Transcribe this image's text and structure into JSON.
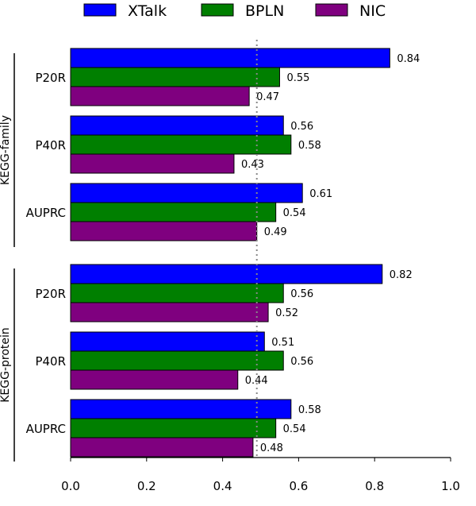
{
  "chart_data": {
    "type": "bar",
    "orientation": "horizontal",
    "series": [
      {
        "name": "XTalk",
        "color": "#0000ff"
      },
      {
        "name": "BPLN",
        "color": "#007f00"
      },
      {
        "name": "NIC",
        "color": "#7f007f"
      }
    ],
    "groups": [
      {
        "name": "KEGG-family",
        "categories": [
          {
            "label": "P20R",
            "values": [
              0.84,
              0.55,
              0.47
            ]
          },
          {
            "label": "P40R",
            "values": [
              0.56,
              0.58,
              0.43
            ]
          },
          {
            "label": "AUPRC",
            "values": [
              0.61,
              0.54,
              0.49
            ]
          }
        ]
      },
      {
        "name": "KEGG-protein",
        "categories": [
          {
            "label": "P20R",
            "values": [
              0.82,
              0.56,
              0.52
            ]
          },
          {
            "label": "P40R",
            "values": [
              0.51,
              0.56,
              0.44
            ]
          },
          {
            "label": "AUPRC",
            "values": [
              0.58,
              0.54,
              0.48
            ]
          }
        ]
      }
    ],
    "x_ticks": [
      "0.0",
      "0.2",
      "0.4",
      "0.6",
      "0.8",
      "1.0"
    ],
    "xlim": [
      0,
      1.0
    ],
    "reference_line": {
      "x": 0.49,
      "style": "dotted",
      "color": "#888888"
    },
    "legend_position": "top",
    "grid": false
  }
}
